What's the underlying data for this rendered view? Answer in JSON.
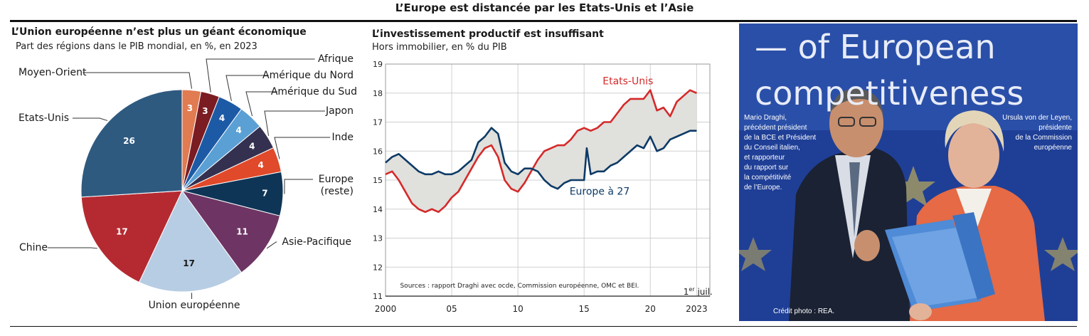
{
  "banner": "L’Europe est distancée par les Etats-Unis et l’Asie",
  "pie": {
    "title": "L’Union européenne n’est plus un géant économique",
    "subtitle": "Part des régions dans le PIB mondial, en %, en 2023"
  },
  "line": {
    "title": "L’investissement productif est insuffisant",
    "subtitle": "Hors immobilier, en % du PIB",
    "sources": "Sources : rapport Draghi avec ocde, Commission européenne, OMC et BEI.",
    "end_note_num": "1",
    "end_note_sup": "er",
    "end_note_word": "juil."
  },
  "chart_data": [
    {
      "type": "pie",
      "title": "L’Union européenne n’est plus un géant économique",
      "subtitle": "Part des régions dans le PIB mondial, en %, en 2023",
      "slices": [
        {
          "label": "Moyen-Orient",
          "value": 3,
          "color": "#e07b52"
        },
        {
          "label": "Afrique",
          "value": 3,
          "color": "#7a1c22"
        },
        {
          "label": "Amérique du Nord",
          "value": 4,
          "color": "#1d5aa6"
        },
        {
          "label": "Amérique du Sud",
          "value": 4,
          "color": "#5aa0d4"
        },
        {
          "label": "Japon",
          "value": 4,
          "color": "#34304f"
        },
        {
          "label": "Inde",
          "value": 4,
          "color": "#e0492a"
        },
        {
          "label": "Europe (reste)",
          "value": 7,
          "color": "#0f3556"
        },
        {
          "label": "Asie-Pacifique",
          "value": 11,
          "color": "#6e3564"
        },
        {
          "label": "Union européenne",
          "value": 17,
          "color": "#b7cde4"
        },
        {
          "label": "Chine",
          "value": 17,
          "color": "#b52a31"
        },
        {
          "label": "Etats-Unis",
          "value": 26,
          "color": "#2f5a80"
        }
      ]
    },
    {
      "type": "line",
      "title": "L’investissement productif est insuffisant",
      "subtitle": "Hors immobilier, en % du PIB",
      "ylim": [
        11,
        19
      ],
      "xlim": [
        2000,
        2024.5
      ],
      "yticks": [
        11,
        12,
        13,
        14,
        15,
        16,
        17,
        18,
        19
      ],
      "xticks": [
        {
          "x": 2000,
          "label": "2000"
        },
        {
          "x": 2005,
          "label": "05"
        },
        {
          "x": 2010,
          "label": "10"
        },
        {
          "x": 2015,
          "label": "15"
        },
        {
          "x": 2020,
          "label": "20"
        },
        {
          "x": 2023.5,
          "label": "2023"
        }
      ],
      "grid": true,
      "fill_between": "#e0e0dc",
      "series": [
        {
          "name": "Etats-Unis",
          "color": "#d42a2a",
          "x": [
            2000,
            2000.5,
            2001,
            2001.5,
            2002,
            2002.5,
            2003,
            2003.5,
            2004,
            2004.5,
            2005,
            2005.5,
            2006,
            2006.5,
            2007,
            2007.5,
            2008,
            2008.5,
            2009,
            2009.5,
            2010,
            2010.5,
            2011,
            2011.5,
            2012,
            2012.5,
            2013,
            2013.5,
            2014,
            2014.5,
            2015,
            2015.5,
            2016,
            2016.5,
            2017,
            2017.5,
            2018,
            2018.5,
            2019,
            2019.5,
            2020,
            2020.5,
            2021,
            2021.5,
            2022,
            2022.5,
            2023,
            2023.5
          ],
          "y": [
            15.2,
            15.3,
            15.0,
            14.6,
            14.2,
            14.0,
            13.9,
            14.0,
            13.9,
            14.1,
            14.4,
            14.6,
            15.0,
            15.4,
            15.8,
            16.1,
            16.2,
            15.8,
            15.0,
            14.7,
            14.6,
            14.9,
            15.3,
            15.7,
            16.0,
            16.1,
            16.2,
            16.2,
            16.4,
            16.7,
            16.8,
            16.7,
            16.8,
            17.0,
            17.0,
            17.3,
            17.6,
            17.8,
            17.8,
            17.8,
            18.1,
            17.4,
            17.5,
            17.2,
            17.7,
            17.9,
            18.1,
            18.0
          ]
        },
        {
          "name": "Europe à 27",
          "color": "#0d3a66",
          "x": [
            2000,
            2000.5,
            2001,
            2001.5,
            2002,
            2002.5,
            2003,
            2003.5,
            2004,
            2004.5,
            2005,
            2005.5,
            2006,
            2006.5,
            2007,
            2007.5,
            2008,
            2008.5,
            2009,
            2009.5,
            2010,
            2010.5,
            2011,
            2011.5,
            2012,
            2012.5,
            2013,
            2013.5,
            2014,
            2014.5,
            2015,
            2015.2,
            2015.5,
            2016,
            2016.5,
            2017,
            2017.5,
            2018,
            2018.5,
            2019,
            2019.5,
            2020,
            2020.5,
            2021,
            2021.5,
            2022,
            2022.5,
            2023,
            2023.5
          ],
          "y": [
            15.6,
            15.8,
            15.9,
            15.7,
            15.5,
            15.3,
            15.2,
            15.2,
            15.3,
            15.2,
            15.2,
            15.3,
            15.5,
            15.7,
            16.3,
            16.5,
            16.8,
            16.6,
            15.6,
            15.3,
            15.2,
            15.4,
            15.4,
            15.3,
            15.0,
            14.8,
            14.7,
            14.9,
            15.0,
            15.0,
            15.0,
            16.1,
            15.2,
            15.3,
            15.3,
            15.5,
            15.6,
            15.8,
            16.0,
            16.2,
            16.1,
            16.5,
            16.0,
            16.1,
            16.4,
            16.5,
            16.6,
            16.7,
            16.7
          ]
        }
      ]
    }
  ],
  "photo": {
    "text_line1": "— of European",
    "text_line2": "competitiveness",
    "caption_left": [
      "Mario Draghi,",
      "précédent président",
      "de la BCE et Président",
      "du Conseil italien,",
      "et rapporteur",
      "du rapport sur",
      "la compétitivité",
      "de l’Europe."
    ],
    "caption_right": [
      "Ursula von der Leyen,",
      "présidente",
      "de la Commission",
      "européenne"
    ],
    "credit": "Crédit photo : REA.",
    "colors": {
      "backdrop": "#1f3f96",
      "star": "#e8c84a",
      "suit": "#1b2233",
      "jacket": "#e56a45",
      "folder": "#4f8bd6"
    }
  }
}
